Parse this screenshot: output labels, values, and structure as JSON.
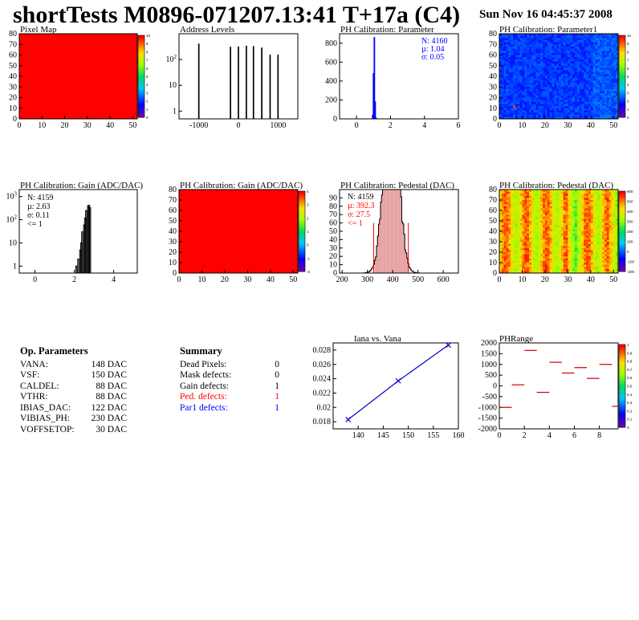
{
  "header": {
    "title": "shortTests M0896-071207.13:41 T+17a (C4)",
    "date": "Sun Nov 16 04:45:37 2008"
  },
  "colors": {
    "red": "#ff0000",
    "blue": "#0000ff",
    "hist_fill": "#cc3333",
    "fit_line": "#0000cc"
  },
  "chart_data": [
    {
      "id": "pixel-map",
      "type": "heatmap",
      "title": "Pixel Map",
      "xlim": [
        0,
        52
      ],
      "ylim": [
        0,
        80
      ],
      "xticks": [
        "0",
        "10",
        "20",
        "30",
        "40",
        "50"
      ],
      "yticks": [
        "0",
        "10",
        "20",
        "30",
        "40",
        "50",
        "60",
        "70",
        "80"
      ],
      "zlim": [
        0,
        10
      ],
      "zticks": [
        "0",
        "1",
        "2",
        "3",
        "4",
        "5",
        "6",
        "7",
        "8",
        "9",
        "10"
      ],
      "uniform_value": 10
    },
    {
      "id": "address-levels",
      "type": "bar",
      "title": "Address Levels",
      "log_y": true,
      "xlim": [
        -1500,
        1500
      ],
      "ylim": [
        0.5,
        1000
      ],
      "xticks": [
        "-1000",
        "0",
        "1000"
      ],
      "yticks": [
        "1",
        "10",
        "10^2"
      ],
      "x": [
        -1000,
        -200,
        0,
        200,
        380,
        590,
        800,
        1000
      ],
      "values": [
        400,
        300,
        310,
        330,
        320,
        280,
        150,
        150
      ]
    },
    {
      "id": "ph-param",
      "type": "bar",
      "title": "PH Calibration: Parameter",
      "xlim": [
        -1,
        6
      ],
      "ylim": [
        0,
        900
      ],
      "xticks": [
        "0",
        "2",
        "4",
        "6"
      ],
      "yticks": [
        "0",
        "200",
        "400",
        "600",
        "800"
      ],
      "x": [
        0.95,
        1.0,
        1.05,
        1.1,
        1.15
      ],
      "values": [
        40,
        480,
        860,
        180,
        10
      ],
      "stats": {
        "n": "N: 4160",
        "mu": "µ: 1.04",
        "sigma": "σ: 0.05"
      }
    },
    {
      "id": "ph-param1",
      "type": "heatmap",
      "title": "PH Calibration: Parameter1",
      "xlim": [
        0,
        52
      ],
      "ylim": [
        0,
        80
      ],
      "xticks": [
        "0",
        "10",
        "20",
        "30",
        "40",
        "50"
      ],
      "yticks": [
        "0",
        "10",
        "20",
        "30",
        "40",
        "50",
        "60",
        "70",
        "80"
      ],
      "zticks": [
        "0",
        "1",
        "2",
        "3",
        "4",
        "5",
        "6",
        "7",
        "8",
        "9",
        "10"
      ],
      "base_value": 2.2
    },
    {
      "id": "ph-gain",
      "type": "bar",
      "title": "PH Calibration: Gain (ADC/DAC)",
      "log_y": true,
      "xlim": [
        -0.8,
        5.2
      ],
      "ylim": [
        0.5,
        2000
      ],
      "xticks": [
        "0",
        "2",
        "4"
      ],
      "yticks": [
        "1",
        "10",
        "10^2",
        "10^3"
      ],
      "x": [
        2.1,
        2.2,
        2.3,
        2.35,
        2.4,
        2.5,
        2.55,
        2.6,
        2.7,
        2.75,
        2.8
      ],
      "values": [
        1,
        2,
        5,
        10,
        30,
        60,
        120,
        250,
        400,
        420,
        330
      ],
      "stats": {
        "n": "N: 4159",
        "mu": "µ: 2.63",
        "sigma": "σ: 0.11",
        "cut": "<= 1"
      }
    },
    {
      "id": "ph-gain-map",
      "type": "heatmap",
      "title": "PH Calibration: Gain (ADC/DAC)",
      "xlim": [
        0,
        52
      ],
      "ylim": [
        0,
        80
      ],
      "xticks": [
        "0",
        "10",
        "20",
        "30",
        "40",
        "50"
      ],
      "yticks": [
        "0",
        "10",
        "20",
        "30",
        "40",
        "50",
        "60",
        "70",
        "80"
      ],
      "zticks": [
        "0",
        "1",
        "2",
        "3",
        "4"
      ],
      "uniform_value": 4
    },
    {
      "id": "ph-pedestal",
      "type": "bar",
      "title": "PH Calibration: Pedestal (DAC)",
      "xlim": [
        190,
        660
      ],
      "ylim": [
        0,
        100
      ],
      "xticks": [
        "200",
        "300",
        "400",
        "500",
        "600"
      ],
      "yticks": [
        "0",
        "10",
        "20",
        "30",
        "40",
        "50",
        "60",
        "70",
        "80",
        "90"
      ],
      "mean": 392.3,
      "sigma_val": 27.5,
      "cut_lines": [
        325,
        462
      ],
      "stats": {
        "n": "N: 4159",
        "mu": "µ: 392.3",
        "sigma": "σ: 27.5",
        "cut": "<= 1"
      }
    },
    {
      "id": "ph-pedestal-map",
      "type": "heatmap",
      "title": "PH Calibration: Pedestal (DAC)",
      "xlim": [
        0,
        52
      ],
      "ylim": [
        0,
        80
      ],
      "xticks": [
        "0",
        "10",
        "20",
        "30",
        "40",
        "50"
      ],
      "yticks": [
        "0",
        "10",
        "20",
        "30",
        "40",
        "50",
        "60",
        "70",
        "80"
      ],
      "zticks": [
        "200",
        "300",
        "400",
        "500"
      ]
    },
    {
      "id": "iana-vana",
      "type": "line",
      "title": "Iana vs. Vana",
      "xlim": [
        135,
        160
      ],
      "ylim": [
        0.017,
        0.029
      ],
      "xticks": [
        "140",
        "145",
        "150",
        "155",
        "160"
      ],
      "yticks": [
        "0.018",
        "0.02",
        "0.022",
        "0.024",
        "0.026",
        "0.028"
      ],
      "x": [
        138,
        148,
        158
      ],
      "values": [
        0.0183,
        0.0237,
        0.0287
      ]
    },
    {
      "id": "ph-range",
      "type": "scatter",
      "title": "PHRange",
      "xlim": [
        0,
        9.5
      ],
      "ylim": [
        -2000,
        2000
      ],
      "xticks": [
        "0",
        "2",
        "4",
        "6",
        "8"
      ],
      "yticks": [
        "-2000",
        "-1500",
        "-1000",
        "-500",
        "0",
        "500",
        "1000",
        "1500",
        "2000"
      ],
      "zticks": [
        "0",
        "0.1",
        "0.2",
        "0.3",
        "0.4",
        "0.5",
        "0.6",
        "0.7",
        "0.8",
        "0.9",
        "1"
      ],
      "x": [
        0.5,
        1.5,
        2.5,
        3.5,
        4.5,
        5.5,
        6.5,
        7.5,
        8.5,
        9.5
      ],
      "values": [
        -1000,
        50,
        1650,
        -300,
        1100,
        600,
        850,
        350,
        1000,
        -950
      ]
    }
  ],
  "op_parameters": {
    "heading": "Op. Parameters",
    "rows": [
      {
        "name": "VANA:",
        "value": "148 DAC"
      },
      {
        "name": "VSF:",
        "value": "150 DAC"
      },
      {
        "name": "CALDEL:",
        "value": "88 DAC"
      },
      {
        "name": "VTHR:",
        "value": "88 DAC"
      },
      {
        "name": "IBIAS_DAC:",
        "value": "122 DAC"
      },
      {
        "name": "VIBIAS_PH:",
        "value": "230 DAC"
      },
      {
        "name": "VOFFSETOP:",
        "value": "30 DAC"
      }
    ]
  },
  "summary": {
    "heading": "Summary",
    "rows": [
      {
        "name": "Dead Pixels:",
        "value": "0",
        "color": "#000000"
      },
      {
        "name": "Mask defects:",
        "value": "0",
        "color": "#000000"
      },
      {
        "name": "Gain defects:",
        "value": "1",
        "color": "#000000"
      },
      {
        "name": "Ped. defects:",
        "value": "1",
        "color": "#ff0000"
      },
      {
        "name": "Par1 defects:",
        "value": "1",
        "color": "#0000ff"
      }
    ]
  }
}
